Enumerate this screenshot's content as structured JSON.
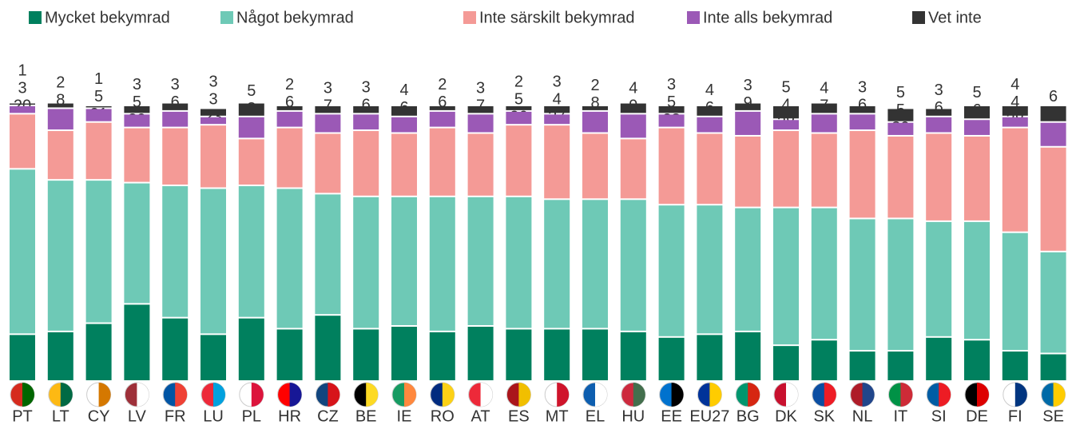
{
  "chart_data": {
    "type": "stacked_bar",
    "categories": [
      "PT",
      "LT",
      "CY",
      "LV",
      "FR",
      "LU",
      "PL",
      "HR",
      "CZ",
      "BE",
      "IE",
      "RO",
      "AT",
      "ES",
      "MT",
      "EL",
      "HU",
      "EE",
      "EU27",
      "BG",
      "DK",
      "SK",
      "NL",
      "IT",
      "SI",
      "DE",
      "FI",
      "SE"
    ],
    "series": [
      {
        "name": "Mycket bekymrad",
        "color": "#00805e",
        "values": [
          17,
          18,
          21,
          28,
          23,
          17,
          23,
          19,
          24,
          19,
          20,
          18,
          20,
          19,
          19,
          19,
          18,
          16,
          17,
          18,
          13,
          15,
          11,
          11,
          16,
          15,
          11,
          10
        ]
      },
      {
        "name": "Något bekymrad",
        "color": "#6ec9b6",
        "values": [
          60,
          55,
          52,
          44,
          48,
          53,
          48,
          51,
          44,
          48,
          47,
          49,
          47,
          48,
          47,
          47,
          48,
          48,
          47,
          45,
          50,
          48,
          48,
          48,
          42,
          43,
          43,
          37
        ]
      },
      {
        "name": "Inte särskilt bekymrad",
        "color": "#f49a96",
        "values": [
          20,
          18,
          21,
          20,
          21,
          23,
          17,
          22,
          22,
          24,
          23,
          25,
          23,
          26,
          27,
          24,
          22,
          28,
          26,
          26,
          28,
          27,
          32,
          30,
          32,
          31,
          38,
          38
        ]
      },
      {
        "name": "Inte alls bekymrad",
        "color": "#9b59b6",
        "values": [
          3,
          8,
          5,
          5,
          6,
          3,
          8,
          6,
          7,
          6,
          6,
          6,
          7,
          5,
          4,
          8,
          9,
          5,
          6,
          9,
          4,
          7,
          6,
          5,
          6,
          6,
          4,
          9
        ]
      },
      {
        "name": "Vet inte",
        "color": "#333333",
        "values": [
          1,
          2,
          1,
          3,
          3,
          3,
          5,
          2,
          3,
          3,
          4,
          2,
          3,
          2,
          3,
          2,
          4,
          3,
          4,
          3,
          5,
          4,
          3,
          5,
          3,
          5,
          4,
          6
        ]
      }
    ]
  }
}
